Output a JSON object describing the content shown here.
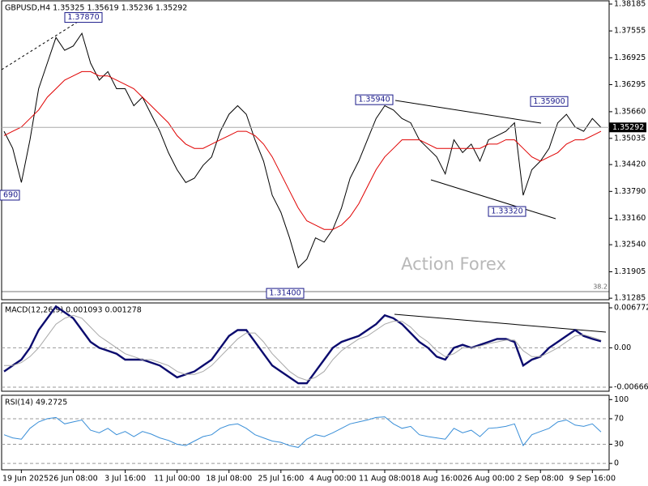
{
  "chart_data": [
    {
      "type": "line",
      "title": "GBPUSD,H4  1.35325 1.35619 1.35236 1.35292",
      "categories": [
        null,
        null,
        "19 Jun 2025",
        null,
        null,
        null,
        null,
        null,
        "26 Jun 08:00",
        null,
        null,
        null,
        null,
        null,
        "3 Jul 16:00",
        null,
        null,
        null,
        null,
        null,
        "11 Jul 00:00",
        null,
        null,
        null,
        null,
        null,
        "18 Jul 08:00",
        null,
        null,
        null,
        null,
        null,
        "25 Jul 16:00",
        null,
        null,
        null,
        null,
        null,
        "4 Aug 00:00",
        null,
        null,
        null,
        null,
        null,
        "11 Aug 08:00",
        null,
        null,
        null,
        null,
        null,
        "18 Aug 16:00",
        null,
        null,
        null,
        null,
        null,
        "26 Aug 00:00",
        null,
        null,
        null,
        null,
        null,
        "2 Sep 08:00",
        null,
        null,
        null,
        null,
        null,
        "9 Sep 16:00",
        null
      ],
      "series": [
        {
          "color": "#000000",
          "values": [
            1.352,
            1.348,
            1.34,
            1.35,
            1.362,
            1.368,
            1.374,
            1.371,
            1.372,
            1.375,
            1.368,
            1.364,
            1.366,
            1.362,
            1.362,
            1.358,
            1.36,
            1.356,
            1.352,
            1.347,
            1.343,
            1.34,
            1.341,
            1.344,
            1.346,
            1.352,
            1.356,
            1.358,
            1.356,
            1.35,
            1.345,
            1.337,
            1.333,
            1.327,
            1.32,
            1.322,
            1.327,
            1.326,
            1.329,
            1.334,
            1.341,
            1.345,
            1.35,
            1.355,
            1.358,
            1.357,
            1.355,
            1.354,
            1.35,
            1.348,
            1.346,
            1.342,
            1.35,
            1.347,
            1.349,
            1.345,
            1.35,
            1.351,
            1.352,
            1.354,
            1.337,
            1.343,
            1.345,
            1.348,
            1.354,
            1.356,
            1.353,
            1.352,
            1.355,
            1.3529
          ]
        },
        {
          "color": "#e00000",
          "values": [
            1.351,
            1.352,
            1.353,
            1.355,
            1.357,
            1.36,
            1.362,
            1.364,
            1.365,
            1.366,
            1.366,
            1.365,
            1.365,
            1.364,
            1.363,
            1.362,
            1.36,
            1.358,
            1.356,
            1.354,
            1.351,
            1.349,
            1.348,
            1.348,
            1.349,
            1.35,
            1.351,
            1.352,
            1.352,
            1.351,
            1.349,
            1.346,
            1.342,
            1.338,
            1.334,
            1.331,
            1.33,
            1.329,
            1.329,
            1.33,
            1.332,
            1.335,
            1.339,
            1.343,
            1.346,
            1.348,
            1.35,
            1.35,
            1.35,
            1.349,
            1.348,
            1.348,
            1.348,
            1.348,
            1.348,
            1.348,
            1.349,
            1.349,
            1.35,
            1.35,
            1.348,
            1.346,
            1.345,
            1.346,
            1.347,
            1.349,
            1.35,
            1.35,
            1.351,
            1.352
          ]
        }
      ],
      "ylim": [
        1.3125,
        1.3828
      ],
      "yticks": [
        1.38185,
        1.37555,
        1.36925,
        1.36295,
        {
          "value": 1.3566,
          "label": "1.35660"
        },
        1.35035,
        {
          "value": 1.3442,
          "label": "1.34420"
        },
        {
          "value": 1.3379,
          "label": "1.33790"
        },
        {
          "value": 1.3316,
          "label": "1.33160"
        },
        {
          "value": 1.3254,
          "label": "1.32540"
        },
        1.31905,
        1.31285
      ],
      "last_price": 1.35292,
      "annotations": [
        {
          "value": 1.3787,
          "label": "1.37870"
        },
        {
          "value": 1.3594,
          "label": "1.35940"
        },
        {
          "value": 1.359,
          "label": "1.35900"
        },
        {
          "value": 1.3332,
          "label": "1.33320"
        },
        {
          "value": 1.314,
          "label": "1.31400"
        }
      ],
      "texts": [
        "690",
        "38.2",
        "Action Forex"
      ]
    },
    {
      "type": "line",
      "title": "MACD(12,26,9) 0.001093 0.001278",
      "series": [
        {
          "color": "#0b0b6e",
          "values": [
            -0.004,
            -0.003,
            -0.002,
            0,
            0.003,
            0.005,
            0.007,
            0.006,
            0.005,
            0.003,
            0.001,
            0,
            -0.0005,
            -0.001,
            -0.002,
            -0.002,
            -0.002,
            -0.0025,
            -0.003,
            -0.004,
            -0.005,
            -0.0045,
            -0.004,
            -0.003,
            -0.002,
            0,
            0.002,
            0.003,
            0.003,
            0.001,
            -0.001,
            -0.003,
            -0.004,
            -0.005,
            -0.006,
            -0.006,
            -0.004,
            -0.002,
            0,
            0.001,
            0.0015,
            0.002,
            0.003,
            0.004,
            0.0055,
            0.005,
            0.004,
            0.0025,
            0.001,
            0,
            -0.0015,
            -0.002,
            0,
            0.0005,
            0,
            0.0005,
            0.001,
            0.0015,
            0.0015,
            0.001,
            -0.003,
            -0.002,
            -0.0015,
            0,
            0.001,
            0.002,
            0.003,
            0.002,
            0.0015,
            0.0011
          ]
        },
        {
          "color": "#a8a8a8",
          "values": [
            -0.003,
            -0.003,
            -0.0025,
            -0.0015,
            0,
            0.002,
            0.004,
            0.005,
            0.0055,
            0.005,
            0.0035,
            0.002,
            0.001,
            0,
            -0.001,
            -0.0015,
            -0.002,
            -0.002,
            -0.0025,
            -0.003,
            -0.004,
            -0.0045,
            -0.0045,
            -0.004,
            -0.003,
            -0.0015,
            0,
            0.0015,
            0.0025,
            0.0025,
            0.001,
            -0.001,
            -0.0025,
            -0.004,
            -0.005,
            -0.0055,
            -0.005,
            -0.004,
            -0.002,
            -0.0005,
            0.0005,
            0.0015,
            0.002,
            0.003,
            0.004,
            0.0045,
            0.0045,
            0.0035,
            0.002,
            0.001,
            -0.0005,
            -0.0015,
            -0.001,
            0,
            0,
            0.0003,
            0.0007,
            0.001,
            0.0013,
            0.0013,
            -0.0005,
            -0.0015,
            -0.0015,
            -0.0008,
            0,
            0.001,
            0.002,
            0.0022,
            0.0018,
            0.0013
          ]
        }
      ],
      "ylim": [
        -0.00735,
        0.00773
      ],
      "yticks": [
        0.006772,
        {
          "value": 0,
          "label": "0.00"
        },
        -0.006667
      ]
    },
    {
      "type": "line",
      "title": "RSI(14) 49.2725",
      "series": [
        {
          "color": "#3a8fd8",
          "values": [
            45,
            40,
            38,
            55,
            65,
            70,
            72,
            62,
            65,
            68,
            52,
            48,
            55,
            45,
            50,
            42,
            50,
            46,
            40,
            36,
            30,
            28,
            35,
            42,
            45,
            55,
            60,
            62,
            55,
            45,
            40,
            35,
            33,
            28,
            25,
            38,
            45,
            42,
            48,
            55,
            62,
            65,
            68,
            72,
            73,
            62,
            55,
            58,
            45,
            42,
            40,
            38,
            55,
            48,
            52,
            42,
            55,
            56,
            58,
            62,
            28,
            45,
            50,
            55,
            65,
            68,
            60,
            58,
            62,
            49.2725
          ]
        }
      ],
      "ylim": [
        -10,
        108
      ],
      "yticks": [
        100,
        70,
        30,
        0
      ]
    }
  ]
}
